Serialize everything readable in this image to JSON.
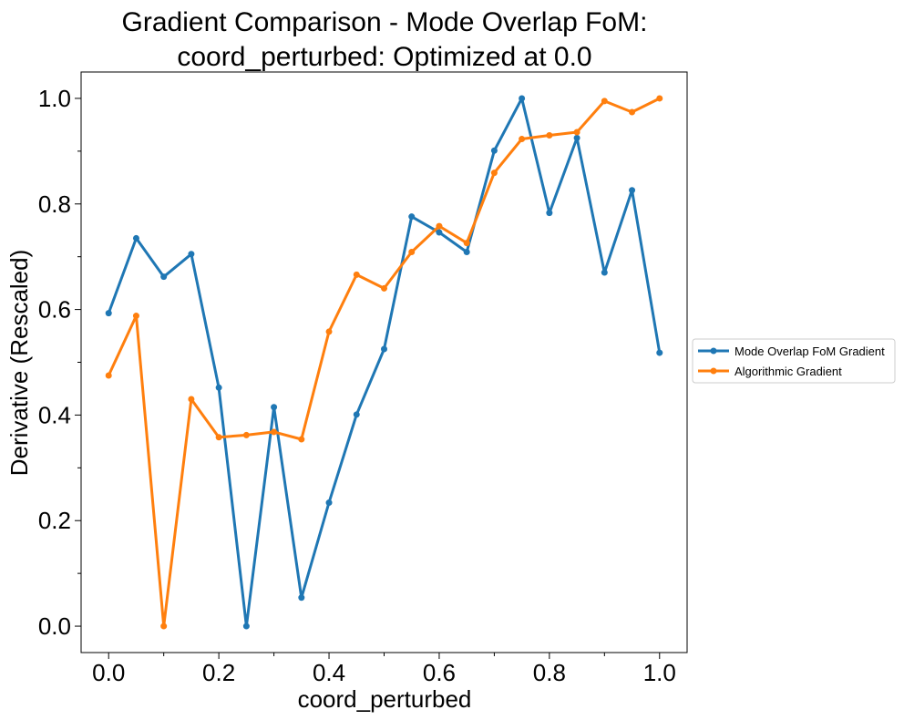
{
  "chart_data": {
    "type": "line",
    "title_line1": "Gradient Comparison - Mode Overlap FoM:",
    "title_line2": "coord_perturbed: Optimized at 0.0",
    "xlabel": "coord_perturbed",
    "ylabel": "Derivative (Rescaled)",
    "xlim": [
      -0.05,
      1.05
    ],
    "ylim": [
      -0.05,
      1.05
    ],
    "xticks": [
      0.0,
      0.2,
      0.4,
      0.6,
      0.8,
      1.0
    ],
    "xtick_labels": [
      "0.0",
      "0.2",
      "0.4",
      "0.6",
      "0.8",
      "1.0"
    ],
    "yticks": [
      0.0,
      0.2,
      0.4,
      0.6,
      0.8,
      1.0
    ],
    "ytick_labels": [
      "0.0",
      "0.2",
      "0.4",
      "0.6",
      "0.8",
      "1.0"
    ],
    "grid": false,
    "legend_position": "outside-right",
    "x": [
      0.0,
      0.05,
      0.1,
      0.15,
      0.2,
      0.25,
      0.3,
      0.35,
      0.4,
      0.45,
      0.5,
      0.55,
      0.6,
      0.65,
      0.7,
      0.75,
      0.8,
      0.85,
      0.9,
      0.95,
      1.0
    ],
    "series": [
      {
        "name": "Mode Overlap FoM Gradient",
        "color": "#1f77b4",
        "values": [
          0.593,
          0.735,
          0.662,
          0.705,
          0.452,
          0.0,
          0.415,
          0.054,
          0.234,
          0.401,
          0.525,
          0.776,
          0.746,
          0.709,
          0.901,
          1.0,
          0.783,
          0.925,
          0.67,
          0.826,
          0.518
        ]
      },
      {
        "name": "Algorithmic Gradient",
        "color": "#ff7f0e",
        "values": [
          0.475,
          0.588,
          0.0,
          0.43,
          0.358,
          0.362,
          0.368,
          0.354,
          0.558,
          0.666,
          0.64,
          0.709,
          0.758,
          0.726,
          0.859,
          0.923,
          0.93,
          0.936,
          0.995,
          0.974,
          1.0
        ]
      }
    ]
  }
}
